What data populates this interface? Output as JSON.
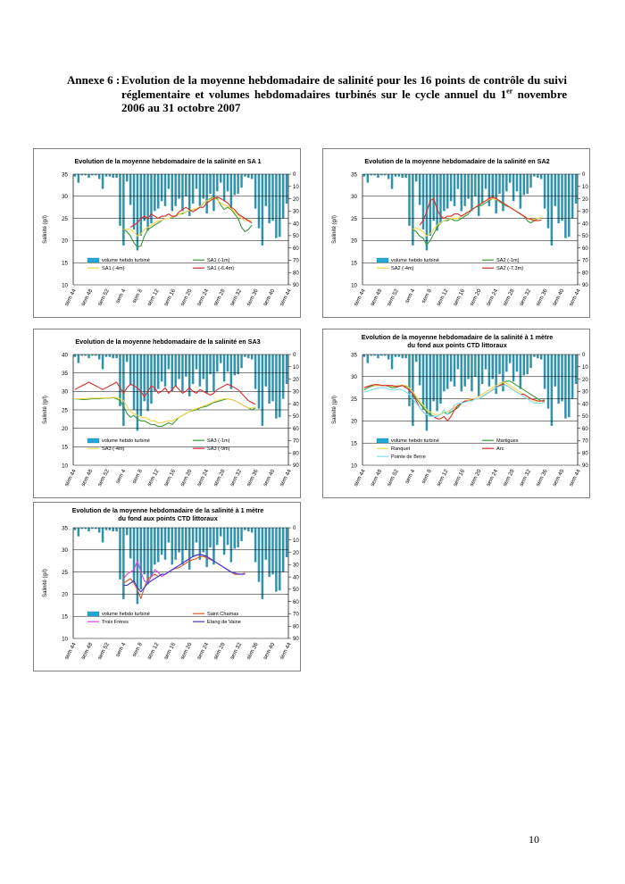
{
  "caption": {
    "label": "Annexe 6 :",
    "text_before_sup": "Evolution de la moyenne hebdomadaire de salinité pour les 16 points de contrôle du suivi réglementaire et volumes hebdomadaires turbinés sur le cycle annuel du 1",
    "sup": "er",
    "text_after_sup": " novembre 2006 au 31 octobre 2007"
  },
  "page_number": "10",
  "colors": {
    "bar_fill": "#2f93ad",
    "bar_legend": "#1fa9d6",
    "grid": "#000000",
    "yellow": "#f2d54a",
    "green": "#3a9a3a",
    "red": "#dd2b2b",
    "orange": "#d75a2a",
    "magenta": "#e040e0",
    "blue": "#3a3ad8",
    "cyan": "#7fe0f0"
  },
  "shared": {
    "turbined_weekly_volume_hm3": [
      2,
      7,
      1,
      1,
      3,
      1,
      1,
      4,
      12,
      2,
      2,
      3,
      3,
      42,
      58,
      6,
      25,
      45,
      62,
      50,
      38,
      46,
      40,
      30,
      28,
      22,
      26,
      12,
      30,
      26,
      20,
      30,
      18,
      34,
      24,
      12,
      26,
      20,
      32,
      16,
      30,
      14,
      7,
      22,
      14,
      28,
      17,
      16,
      11,
      2,
      3,
      4,
      28,
      44,
      58,
      26,
      40,
      38,
      52,
      51,
      36,
      24
    ],
    "x_tick_labels": [
      "sem 44",
      "sem 48",
      "sem 52",
      "sem 4",
      "sem 8",
      "sem 12",
      "sem 16",
      "sem 20",
      "sem 24",
      "sem 28",
      "sem 32",
      "sem 36",
      "sem 40",
      "sem 44"
    ],
    "y2_ticks": [
      "0",
      "10",
      "20",
      "30",
      "40",
      "50",
      "60",
      "70",
      "80",
      "90"
    ],
    "y2_label": "turbinage (Mm3)",
    "y_label": "Salinité (g/l)",
    "bar_legend_label": "volume hebdo turbiné"
  },
  "chart_data": [
    {
      "type": "bar+line",
      "title": "Evolution de la moyenne hebdomadaire de la salinité en SA 1",
      "title2": "",
      "ylabel": "Salinité (g/l)",
      "y2label": "turbinage (Mm3)",
      "ylim": [
        10,
        35
      ],
      "y_ticks": [
        10,
        15,
        20,
        25,
        30,
        35
      ],
      "y2lim": [
        0,
        90
      ],
      "series": [
        {
          "name": "SA1 (-1m)",
          "color": "#3a9a3a",
          "start_index": 14,
          "values": [
            22.5,
            22.0,
            21.0,
            19.5,
            18.5,
            18.8,
            21.0,
            22.5,
            23.0,
            23.5,
            24.0,
            24.5,
            25.0,
            25.0,
            25.2,
            25.5,
            26.0,
            26.0,
            26.5,
            26.7,
            27.0,
            27.0,
            27.5,
            28.5,
            29.0,
            29.5,
            29.8,
            29.5,
            28.0,
            27.0,
            27.5,
            27.0,
            26.0,
            25.0,
            23.0,
            22.0,
            22.5,
            23.5
          ]
        },
        {
          "name": "SA1 (-4m)",
          "color": "#f2d54a",
          "start_index": 14,
          "values": [
            22.5,
            22.6,
            22.5,
            22.0,
            21.0,
            21.5,
            22.5,
            23.0,
            23.5,
            24.0,
            24.5,
            24.5,
            25.0,
            25.0,
            25.3,
            25.6,
            26.0,
            26.2,
            26.5,
            26.8,
            27.0,
            27.2,
            27.6,
            28.5,
            29.0,
            29.3,
            29.6,
            29.2,
            28.5,
            28.0,
            27.8,
            27.2,
            26.5,
            25.8,
            25.0,
            24.5,
            24.5,
            24.6
          ]
        },
        {
          "name": "SA1 (-6.4m)",
          "color": "#dd2b2b",
          "start_index": 16,
          "values": [
            23.0,
            23.5,
            24.0,
            25.0,
            25.5,
            25.0,
            26.0,
            25.5,
            25.0,
            25.5,
            25.5,
            26.0,
            25.5,
            25.5,
            26.5,
            27.0,
            27.5,
            27.0,
            26.5,
            27.0,
            27.5,
            27.5,
            28.5,
            29.0,
            29.5,
            29.8,
            29.5,
            29.0,
            28.5,
            27.5,
            27.0,
            26.0,
            25.5,
            25.0,
            24.5,
            24.0
          ]
        }
      ]
    },
    {
      "type": "bar+line",
      "title": "Evolution de la moyenne hebdomadaire de la salinité en SA2",
      "title2": "",
      "ylabel": "Salinité (g/l)",
      "y2label": "turbinage (Mm3)",
      "ylim": [
        10,
        35
      ],
      "y_ticks": [
        10,
        15,
        20,
        25,
        30,
        35
      ],
      "y2lim": [
        0,
        90
      ],
      "series": [
        {
          "name": "SA2 (-1m)",
          "color": "#3a9a3a",
          "start_index": 14,
          "values": [
            22.5,
            22.0,
            21.0,
            20.5,
            19.0,
            20.0,
            21.5,
            23.0,
            24.0,
            24.5,
            24.5,
            25.0,
            24.5,
            24.5,
            25.0,
            25.5,
            26.0,
            27.0,
            27.5,
            27.8,
            28.0,
            28.5,
            29.0,
            29.5,
            29.3,
            28.8,
            28.2,
            27.8,
            27.5,
            27.0,
            26.5,
            26.0,
            25.5,
            24.5,
            24.0,
            24.5,
            25.0,
            25.0
          ]
        },
        {
          "name": "SA2 (-4m)",
          "color": "#f2d54a",
          "start_index": 14,
          "values": [
            22.5,
            22.8,
            22.5,
            22.0,
            21.0,
            21.5,
            22.5,
            23.5,
            24.0,
            24.5,
            24.8,
            25.0,
            25.0,
            25.0,
            25.5,
            26.0,
            26.5,
            27.0,
            27.5,
            28.0,
            28.5,
            29.0,
            29.3,
            29.5,
            29.3,
            29.0,
            28.5,
            28.0,
            27.5,
            27.0,
            26.5,
            26.0,
            25.5,
            25.0,
            24.8,
            24.8,
            25.0,
            25.2
          ]
        },
        {
          "name": "SA2 (-7.3m)",
          "color": "#dd2b2b",
          "start_index": 16,
          "values": [
            23.5,
            24.5,
            26.5,
            29.0,
            29.5,
            27.0,
            25.5,
            25.0,
            25.5,
            25.5,
            26.0,
            26.0,
            25.5,
            26.0,
            26.5,
            27.0,
            27.5,
            28.0,
            28.5,
            29.0,
            29.5,
            29.8,
            29.5,
            29.0,
            28.5,
            28.0,
            27.5,
            27.0,
            26.5,
            26.0,
            25.5,
            25.0,
            24.8,
            24.5,
            24.5,
            24.6
          ]
        }
      ]
    },
    {
      "type": "bar+line",
      "title": "Evolution de la moyenne hebdomadaire de la salinité en SA3",
      "title2": "",
      "ylabel": "Salinité (g/l)",
      "y2label": "turbinage (Mm3)",
      "ylim": [
        10,
        40
      ],
      "y_ticks": [
        10,
        15,
        20,
        25,
        30,
        35,
        40
      ],
      "y2lim": [
        0,
        90
      ],
      "series": [
        {
          "name": "SA3 (-1m)",
          "color": "#3a9a3a",
          "start_index": 0,
          "values": [
            28.0,
            27.9,
            27.8,
            27.8,
            27.9,
            28.0,
            28.0,
            28.0,
            28.1,
            28.2,
            28.2,
            28.3,
            28.0,
            27.5,
            26.0,
            24.0,
            23.0,
            23.5,
            22.5,
            22.0,
            22.0,
            21.5,
            21.0,
            21.0,
            20.5,
            20.5,
            21.0,
            21.5,
            21.0,
            22.0,
            23.0,
            23.5,
            24.0,
            24.5,
            24.8,
            25.0,
            25.5,
            25.8,
            26.0,
            26.5,
            27.0,
            27.2,
            27.5,
            27.8,
            28.0,
            27.8,
            27.5,
            27.0,
            26.5,
            26.0,
            25.5,
            25.0,
            25.5
          ]
        },
        {
          "name": "SA3 (-4m)",
          "color": "#f2d54a",
          "start_index": 0,
          "values": [
            28.0,
            28.0,
            28.0,
            28.0,
            28.1,
            28.2,
            28.2,
            28.2,
            28.2,
            28.3,
            28.3,
            28.4,
            28.3,
            28.0,
            27.5,
            26.0,
            24.5,
            24.0,
            23.5,
            23.0,
            23.0,
            22.5,
            22.0,
            22.0,
            21.5,
            21.5,
            21.8,
            22.0,
            22.0,
            22.5,
            23.0,
            23.5,
            24.0,
            24.5,
            25.0,
            25.3,
            25.7,
            26.0,
            26.4,
            26.8,
            27.2,
            27.5,
            27.8,
            28.0,
            28.0,
            27.8,
            27.5,
            27.0,
            26.5,
            26.0,
            25.5,
            25.5,
            25.8
          ]
        },
        {
          "name": "SA3 (-9m)",
          "color": "#dd2b2b",
          "start_index": 0,
          "values": [
            30.5,
            31.0,
            31.5,
            32.0,
            32.5,
            32.0,
            31.5,
            31.0,
            30.5,
            31.0,
            31.5,
            32.0,
            32.5,
            31.0,
            29.5,
            31.0,
            32.0,
            31.5,
            31.0,
            30.0,
            28.5,
            30.0,
            31.5,
            31.0,
            29.5,
            30.0,
            31.0,
            29.5,
            30.5,
            31.5,
            30.5,
            29.5,
            30.0,
            31.0,
            30.0,
            29.5,
            30.5,
            30.0,
            29.5,
            29.0,
            29.5,
            30.5,
            31.0,
            31.5,
            32.0,
            31.5,
            31.0,
            30.5,
            29.5,
            28.5,
            27.5,
            27.0,
            26.5
          ]
        }
      ]
    },
    {
      "type": "bar+line",
      "title": "Evolution de la moyenne hebdomadaire de la salinité à 1 mètre",
      "title2": "du fond aux points CTD littoraux",
      "ylabel": "Salinité (g/l)",
      "y2label": "turbinage (Mm3)",
      "ylim": [
        10,
        35
      ],
      "y_ticks": [
        10,
        15,
        20,
        25,
        30,
        35
      ],
      "y2lim": [
        0,
        90
      ],
      "series": [
        {
          "name": "Martigues",
          "color": "#3a9a3a",
          "start_index": 0,
          "values": [
            27.0,
            27.5,
            27.8,
            28.0,
            28.0,
            28.0,
            28.0,
            27.8,
            27.5,
            27.5,
            27.8,
            28.0,
            27.8,
            27.5,
            26.5,
            25.0,
            24.0,
            23.0,
            22.0,
            21.5,
            21.0,
            21.0,
            21.5,
            22.0,
            21.5,
            22.0,
            22.5,
            23.0,
            24.0,
            24.5,
            24.5,
            24.8,
            25.0,
            25.0,
            25.5,
            26.0,
            26.5,
            27.0,
            27.5,
            28.0,
            28.5,
            29.0,
            29.0,
            28.5,
            28.0,
            27.5,
            27.0,
            26.5,
            26.0,
            25.5,
            25.0,
            24.5,
            24.8
          ]
        },
        {
          "name": "Ranquet",
          "color": "#f2d54a",
          "start_index": 0,
          "values": [
            27.5,
            27.8,
            28.0,
            28.0,
            28.0,
            28.0,
            28.0,
            28.0,
            27.8,
            27.8,
            28.0,
            28.0,
            28.0,
            27.5,
            26.5,
            25.5,
            24.5,
            23.5,
            22.5,
            22.0,
            21.5,
            21.5,
            21.5,
            22.0,
            22.0,
            22.5,
            23.0,
            23.5,
            24.0,
            24.5,
            24.8,
            25.0,
            25.0,
            25.5,
            26.0,
            26.5,
            27.0,
            27.5,
            28.0,
            28.5,
            28.8,
            28.5,
            28.0,
            27.5,
            27.0,
            26.5,
            26.0,
            25.5,
            25.0,
            24.5,
            24.0,
            24.0,
            24.5
          ]
        },
        {
          "name": "Arc",
          "color": "#dd2b2b",
          "start_index": 0,
          "values": [
            27.5,
            27.8,
            28.0,
            28.2,
            28.2,
            28.0,
            28.0,
            28.0,
            28.0,
            27.8,
            27.8,
            28.0,
            27.5,
            27.0,
            26.0,
            24.5,
            23.0,
            22.0,
            21.5,
            21.0,
            21.0,
            20.5,
            20.5,
            21.0,
            20.0,
            21.0,
            22.5,
            23.5,
            24.0,
            24.5,
            24.5,
            24.8,
            25.0,
            25.0,
            25.5,
            26.0,
            26.5,
            27.0,
            27.5,
            28.0,
            28.2,
            28.0,
            27.5,
            27.0,
            26.5,
            26.0,
            26.0,
            25.5,
            25.0,
            24.8,
            24.5,
            24.5,
            24.5
          ]
        },
        {
          "name": "Pointe de Berre",
          "color": "#7fe0f0",
          "start_index": 0,
          "values": [
            26.5,
            26.8,
            27.0,
            27.2,
            27.5,
            27.5,
            27.5,
            27.2,
            27.0,
            27.0,
            27.2,
            27.0,
            26.5,
            26.0,
            25.0,
            24.0,
            23.0,
            22.0,
            21.5,
            21.0,
            21.0,
            21.0,
            21.5,
            22.5,
            21.5,
            22.5,
            23.5,
            24.0,
            24.0,
            24.2,
            24.5,
            24.5,
            25.0,
            25.0,
            25.5,
            26.0,
            26.5,
            27.0,
            27.5,
            27.8,
            28.0,
            28.0,
            27.5,
            27.0,
            26.5,
            26.0,
            25.5,
            25.0,
            24.5,
            24.0,
            24.0,
            24.0,
            24.2
          ]
        }
      ]
    },
    {
      "type": "bar+line",
      "title": "Evolution de la moyenne hebdomadaire de la salinité à 1 mètre",
      "title2": "du fond aux points CTD littoraux",
      "ylabel": "Salinité (g/l)",
      "y2label": "turbinage (Mm3)",
      "ylim": [
        10,
        35
      ],
      "y_ticks": [
        10,
        15,
        20,
        25,
        30,
        35
      ],
      "y2lim": [
        0,
        90
      ],
      "series": [
        {
          "name": "Saint Chamas",
          "color": "#d75a2a",
          "start_index": 14,
          "values": [
            22.5,
            23.0,
            23.5,
            22.5,
            21.0,
            19.0,
            21.5,
            23.5,
            24.0,
            24.5,
            24.0,
            24.5,
            24.5,
            25.0,
            25.5,
            25.8,
            26.0,
            26.5,
            27.0,
            27.5,
            27.8,
            28.0,
            28.5,
            28.5,
            28.2,
            27.8,
            27.5,
            27.0,
            26.5,
            26.0,
            25.5,
            25.0,
            24.5,
            24.5,
            24.5,
            24.8
          ]
        },
        {
          "name": "Trois Frères",
          "color": "#e040e0",
          "start_index": 14,
          "values": [
            23.5,
            24.5,
            25.0,
            25.5,
            27.5,
            25.0,
            23.0,
            22.5,
            24.0,
            25.5,
            25.0,
            24.0,
            24.5,
            25.0,
            25.5,
            26.0,
            26.5,
            27.0,
            27.5,
            28.0,
            28.5,
            28.8,
            29.0,
            28.8,
            28.5,
            28.0,
            27.5,
            27.0,
            26.5,
            26.0,
            25.5,
            25.0,
            24.8,
            24.6,
            24.5,
            24.6
          ]
        },
        {
          "name": "Etang de Vaine",
          "color": "#3a3ad8",
          "start_index": 14,
          "values": [
            22.0,
            22.0,
            22.5,
            23.0,
            21.5,
            20.5,
            21.5,
            22.5,
            23.0,
            23.5,
            24.0,
            24.5,
            24.5,
            25.0,
            25.5,
            26.0,
            26.5,
            27.0,
            27.5,
            28.0,
            28.5,
            28.8,
            29.0,
            28.8,
            28.5,
            28.0,
            27.5,
            27.0,
            26.5,
            26.0,
            25.5,
            25.0,
            24.8,
            24.5,
            24.5,
            24.5
          ]
        }
      ]
    }
  ]
}
